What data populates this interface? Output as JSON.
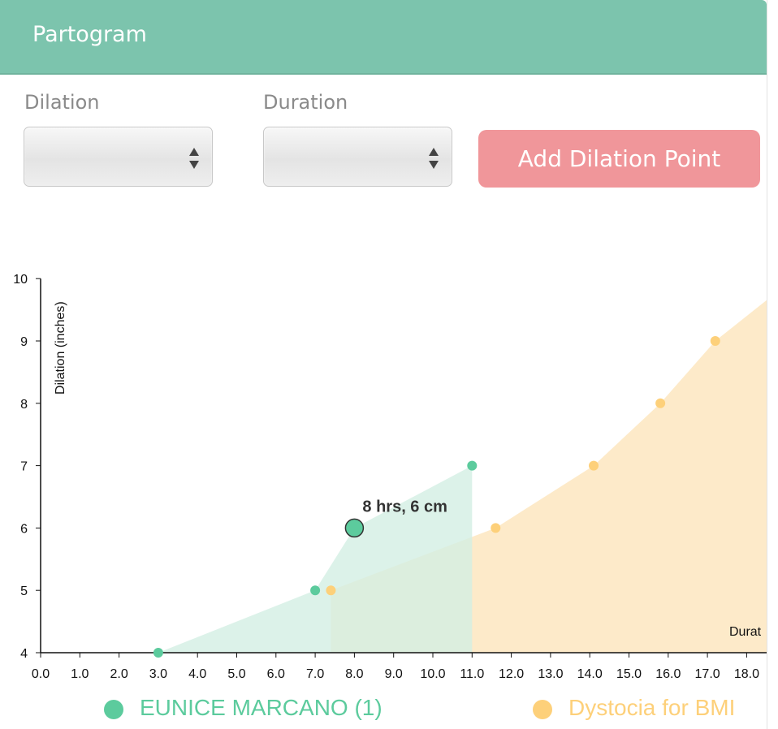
{
  "header": {
    "title": "Partogram"
  },
  "form": {
    "dilation_label": "Dilation",
    "dilation_value": "",
    "duration_label": "Duration",
    "duration_value": "",
    "add_button_label": "Add Dilation Point"
  },
  "colors": {
    "header_bg": "#7cc4ad",
    "button_bg": "#f0969a",
    "patient_series": "#5ccb9d",
    "patient_area": "#d3efe3",
    "dystocia_series": "#fdd07a",
    "dystocia_area": "#fde6bf"
  },
  "chart_data": {
    "type": "area",
    "ylabel": "Dilation (inches)",
    "xlabel": "Durat",
    "xlim": [
      0,
      18.8
    ],
    "ylim": [
      4,
      10
    ],
    "x_ticks": [
      "0.0",
      "1.0",
      "2.0",
      "3.0",
      "4.0",
      "5.0",
      "6.0",
      "7.0",
      "8.0",
      "9.0",
      "10.0",
      "11.0",
      "12.0",
      "13.0",
      "14.0",
      "15.0",
      "16.0",
      "17.0",
      "18.0"
    ],
    "y_ticks": [
      "4",
      "5",
      "6",
      "7",
      "8",
      "9",
      "10"
    ],
    "grid": false,
    "legend_position": "bottom",
    "series": [
      {
        "name": "EUNICE MARCANO (1)",
        "color": "#5ccb9d",
        "points": [
          {
            "x": 3.0,
            "y": 4
          },
          {
            "x": 7.0,
            "y": 5
          },
          {
            "x": 8.0,
            "y": 6
          },
          {
            "x": 11.0,
            "y": 7
          }
        ]
      },
      {
        "name": "Dystocia for BMI",
        "color": "#fdd07a",
        "points": [
          {
            "x": 7.4,
            "y": 5
          },
          {
            "x": 11.6,
            "y": 6
          },
          {
            "x": 14.1,
            "y": 7
          },
          {
            "x": 15.8,
            "y": 8
          },
          {
            "x": 17.2,
            "y": 9
          },
          {
            "x": 18.8,
            "y": 9.8
          }
        ]
      }
    ],
    "annotation": {
      "x": 8.0,
      "y": 6,
      "text": "8 hrs, 6 cm"
    }
  }
}
